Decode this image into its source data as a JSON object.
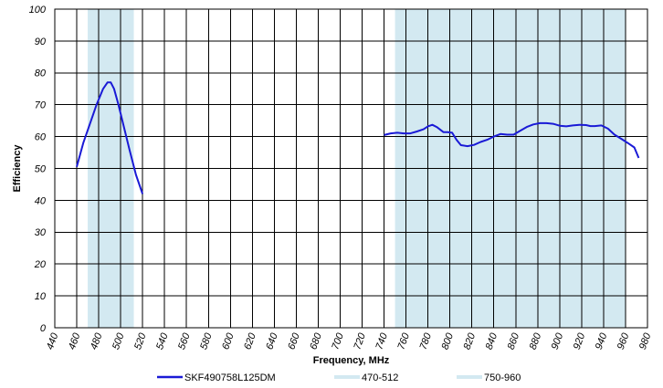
{
  "chart_data": {
    "type": "line",
    "title": "",
    "xlabel": "Frequency, MHz",
    "ylabel": "Efficiency",
    "xlim": [
      440,
      980
    ],
    "ylim": [
      0,
      100
    ],
    "x_ticks": [
      "440",
      "460",
      "480",
      "500",
      "520",
      "540",
      "560",
      "580",
      "600",
      "620",
      "640",
      "660",
      "680",
      "700",
      "720",
      "740",
      "760",
      "780",
      "800",
      "820",
      "840",
      "860",
      "880",
      "900",
      "920",
      "940",
      "960",
      "980"
    ],
    "y_ticks": [
      "0",
      "10",
      "20",
      "30",
      "40",
      "50",
      "60",
      "70",
      "80",
      "90",
      "100"
    ],
    "grid": true,
    "legend_position": "bottom",
    "bands": [
      {
        "name": "470-512",
        "x0": 470,
        "x1": 512,
        "color": "#d3e9f1"
      },
      {
        "name": "750-960",
        "x0": 750,
        "x1": 960,
        "color": "#d3e9f1"
      }
    ],
    "series": [
      {
        "name": "SKF490758L125DM",
        "color": "#1a1ad6",
        "segments": [
          {
            "x": [
              460,
              466,
              472,
              478,
              484,
              488,
              491,
              494,
              498,
              503,
              508,
              514,
              520
            ],
            "y": [
              50.5,
              58,
              64,
              70,
              75,
              77,
              77,
              75,
              70,
              63,
              56,
              48,
              42
            ]
          },
          {
            "x": [
              740,
              746,
              752,
              758,
              764,
              770,
              776,
              780,
              784,
              788,
              794,
              798,
              802,
              806,
              810,
              816,
              822,
              828,
              834,
              840,
              846,
              852,
              858,
              864,
              870,
              876,
              882,
              888,
              894,
              900,
              906,
              912,
              918,
              924,
              928,
              932,
              938,
              944,
              950,
              956,
              962,
              968,
              972
            ],
            "y": [
              60.5,
              61,
              61.2,
              61,
              61,
              61.6,
              62.3,
              63.2,
              63.7,
              63,
              61.4,
              61.4,
              61.2,
              59,
              57.3,
              57,
              57.4,
              58.3,
              59,
              60,
              60.8,
              60.6,
              60.6,
              61.8,
              63,
              63.8,
              64.2,
              64.2,
              64,
              63.4,
              63.2,
              63.5,
              63.7,
              63.6,
              63.3,
              63.3,
              63.5,
              62.5,
              60.6,
              59.3,
              58,
              56.6,
              53.3
            ]
          }
        ]
      }
    ]
  }
}
